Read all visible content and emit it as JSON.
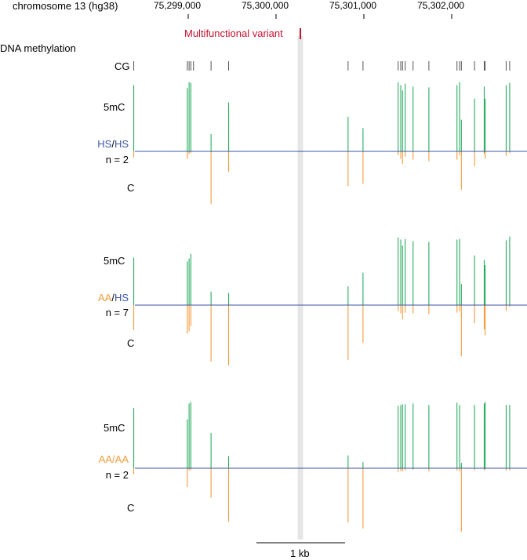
{
  "chart_data": {
    "type": "methylation-track",
    "axis": {
      "label": "chromosome 13 (hg38)",
      "ticks": [
        "75,299,000",
        "75,300,000",
        "75,301,000",
        "75,302,000"
      ],
      "tick_values": [
        75299000,
        75300000,
        75301000,
        75302000
      ],
      "xlim": [
        75298290,
        75302740
      ]
    },
    "track_title": "DNA methylation",
    "variant": {
      "label": "Multifunctional variant",
      "position": 75300435,
      "color": "#c8102e"
    },
    "cg_label": "CG",
    "cg_positions": [
      75298380,
      75298990,
      75299010,
      75299030,
      75299060,
      75299260,
      75299460,
      75300820,
      75300990,
      75301390,
      75301420,
      75301440,
      75301470,
      75301560,
      75301740,
      75302060,
      75302090,
      75302110,
      75302260,
      75302370,
      75302380,
      75302620,
      75302660
    ],
    "scale_bar": {
      "label": "1 kb",
      "length_bp": 1000
    },
    "series_labels": {
      "methylated": "5mC",
      "unmethylated": "C"
    },
    "colors": {
      "methylated": "#27ae60",
      "unmethylated": "#f39c3c",
      "HS": "#3a55a4",
      "AA": "#f39c3c",
      "baseline": "#3a55a4"
    },
    "ylim": [
      -1,
      1
    ],
    "panels": [
      {
        "genotype": [
          "HS",
          "HS"
        ],
        "n_label": "n = 2",
        "sites": [
          {
            "pos": 75298380,
            "m": 0.88,
            "u": 0.08
          },
          {
            "pos": 75298990,
            "m": 0.84,
            "u": 0.1
          },
          {
            "pos": 75299010,
            "m": 0.92,
            "u": 0.04
          },
          {
            "pos": 75299030,
            "m": 0.91,
            "u": 0.02
          },
          {
            "pos": 75299260,
            "m": 0.23,
            "u": 0.7
          },
          {
            "pos": 75299460,
            "m": 0.65,
            "u": 0.27
          },
          {
            "pos": 75300820,
            "m": 0.46,
            "u": 0.46
          },
          {
            "pos": 75300990,
            "m": 0.31,
            "u": 0.43
          },
          {
            "pos": 75301390,
            "m": 0.92,
            "u": 0.05
          },
          {
            "pos": 75301420,
            "m": 0.88,
            "u": 0.1
          },
          {
            "pos": 75301440,
            "m": 0.81,
            "u": 0.17
          },
          {
            "pos": 75301470,
            "m": 0.9,
            "u": 0.07
          },
          {
            "pos": 75301560,
            "m": 0.86,
            "u": 0.11
          },
          {
            "pos": 75301740,
            "m": 0.85,
            "u": 0.13
          },
          {
            "pos": 75302060,
            "m": 0.88,
            "u": 0.11
          },
          {
            "pos": 75302090,
            "m": 0.92,
            "u": 0.05
          },
          {
            "pos": 75302110,
            "m": 0.42,
            "u": 0.51
          },
          {
            "pos": 75302260,
            "m": 0.7,
            "u": 0.2
          },
          {
            "pos": 75302370,
            "m": 0.86,
            "u": 0.03
          },
          {
            "pos": 75302380,
            "m": 0.7,
            "u": 0.1
          },
          {
            "pos": 75302620,
            "m": 0.88,
            "u": 0.06
          },
          {
            "pos": 75302660,
            "m": 0.91,
            "u": 0.02
          }
        ]
      },
      {
        "genotype": [
          "AA",
          "HS"
        ],
        "n_label": "n = 7",
        "sites": [
          {
            "pos": 75298380,
            "m": 0.63,
            "u": 0.33
          },
          {
            "pos": 75298990,
            "m": 0.58,
            "u": 0.38
          },
          {
            "pos": 75299010,
            "m": 0.62,
            "u": 0.35
          },
          {
            "pos": 75299030,
            "m": 0.68,
            "u": 0.28
          },
          {
            "pos": 75299260,
            "m": 0.18,
            "u": 0.75
          },
          {
            "pos": 75299460,
            "m": 0.16,
            "u": 0.8
          },
          {
            "pos": 75300820,
            "m": 0.25,
            "u": 0.73
          },
          {
            "pos": 75300990,
            "m": 0.43,
            "u": 0.5
          },
          {
            "pos": 75301390,
            "m": 0.9,
            "u": 0.08
          },
          {
            "pos": 75301420,
            "m": 0.87,
            "u": 0.11
          },
          {
            "pos": 75301440,
            "m": 0.79,
            "u": 0.19
          },
          {
            "pos": 75301470,
            "m": 0.88,
            "u": 0.1
          },
          {
            "pos": 75301560,
            "m": 0.85,
            "u": 0.11
          },
          {
            "pos": 75301740,
            "m": 0.84,
            "u": 0.12
          },
          {
            "pos": 75302060,
            "m": 0.87,
            "u": 0.1
          },
          {
            "pos": 75302090,
            "m": 0.88,
            "u": 0.08
          },
          {
            "pos": 75302110,
            "m": 0.28,
            "u": 0.68
          },
          {
            "pos": 75302260,
            "m": 0.66,
            "u": 0.24
          },
          {
            "pos": 75302370,
            "m": 0.6,
            "u": 0.32
          },
          {
            "pos": 75302380,
            "m": 0.53,
            "u": 0.4
          },
          {
            "pos": 75302620,
            "m": 0.86,
            "u": 0.08
          },
          {
            "pos": 75302660,
            "m": 0.91,
            "u": 0.02
          }
        ]
      },
      {
        "genotype": [
          "AA",
          "AA"
        ],
        "n_label": "n = 2",
        "sites": [
          {
            "pos": 75298380,
            "m": 0.8,
            "u": 0.08
          },
          {
            "pos": 75298990,
            "m": 0.65,
            "u": 0.25
          },
          {
            "pos": 75299010,
            "m": 0.86,
            "u": 0.03
          },
          {
            "pos": 75299030,
            "m": 0.88,
            "u": 0.02
          },
          {
            "pos": 75299260,
            "m": 0.47,
            "u": 0.39
          },
          {
            "pos": 75299460,
            "m": 0.16,
            "u": 0.71
          },
          {
            "pos": 75300820,
            "m": 0.17,
            "u": 0.72
          },
          {
            "pos": 75300990,
            "m": 0.08,
            "u": 0.8
          },
          {
            "pos": 75301390,
            "m": 0.83,
            "u": 0.05
          },
          {
            "pos": 75301420,
            "m": 0.84,
            "u": 0.04
          },
          {
            "pos": 75301440,
            "m": 0.85,
            "u": 0.04
          },
          {
            "pos": 75301470,
            "m": 0.85,
            "u": 0.03
          },
          {
            "pos": 75301560,
            "m": 0.86,
            "u": 0.02
          },
          {
            "pos": 75301740,
            "m": 0.84,
            "u": 0.04
          },
          {
            "pos": 75302060,
            "m": 0.87,
            "u": 0.03
          },
          {
            "pos": 75302090,
            "m": 0.84,
            "u": 0.04
          },
          {
            "pos": 75302110,
            "m": 0.07,
            "u": 0.84
          },
          {
            "pos": 75302260,
            "m": 0.84,
            "u": 0.03
          },
          {
            "pos": 75302370,
            "m": 0.86,
            "u": 0.02
          },
          {
            "pos": 75302380,
            "m": 0.88,
            "u": 0.02
          },
          {
            "pos": 75302620,
            "m": 0.84,
            "u": 0.03
          },
          {
            "pos": 75302660,
            "m": 0.84,
            "u": 0.03
          }
        ]
      }
    ]
  }
}
